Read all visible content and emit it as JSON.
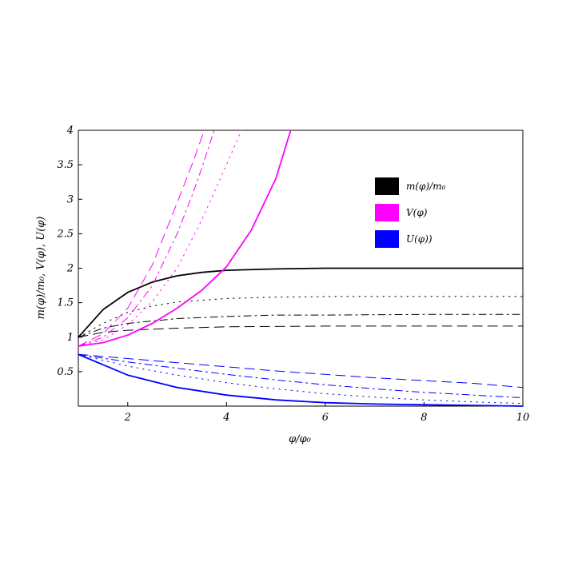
{
  "chart_data": {
    "type": "line",
    "xlabel": "φ/φ₀",
    "ylabel": "m(φ)/m₀, V(φ), U(φ)",
    "xlim": [
      1,
      10
    ],
    "ylim": [
      0,
      4
    ],
    "xticks": [
      2,
      4,
      6,
      8,
      10
    ],
    "xtick_labels": [
      "2",
      "4",
      "6",
      "8",
      "10"
    ],
    "yticks": [
      0.5,
      1,
      1.5,
      2,
      2.5,
      3,
      3.5,
      4
    ],
    "ytick_labels": [
      "0.5",
      "1",
      "1.5",
      "2",
      "2.5",
      "3",
      "3.5",
      "4"
    ],
    "grid": false,
    "legend_placement": "top-right",
    "colors": {
      "black": "#000000",
      "magenta": "#ff00ff",
      "blue": "#0000ff"
    },
    "legend": [
      {
        "label": "m(φ)/m₀",
        "color": "#000000"
      },
      {
        "label": "V(φ)",
        "color": "#ff00ff"
      },
      {
        "label": "U(φ))",
        "color": "#0000ff"
      }
    ],
    "series": [
      {
        "group": "m",
        "color": "#000000",
        "style": "solid",
        "x": [
          1,
          1.5,
          2,
          2.5,
          3,
          3.5,
          4,
          5,
          6,
          8,
          10
        ],
        "y": [
          1.0,
          1.4,
          1.65,
          1.8,
          1.89,
          1.94,
          1.97,
          1.99,
          2.0,
          2.0,
          2.0
        ]
      },
      {
        "group": "m",
        "color": "#000000",
        "style": "dotted",
        "x": [
          1,
          1.5,
          2,
          2.5,
          3,
          4,
          5,
          6,
          8,
          10
        ],
        "y": [
          1.0,
          1.2,
          1.36,
          1.45,
          1.51,
          1.56,
          1.58,
          1.59,
          1.59,
          1.59
        ]
      },
      {
        "group": "m",
        "color": "#000000",
        "style": "dashdot",
        "x": [
          1,
          1.5,
          2,
          3,
          4,
          5,
          6,
          8,
          10
        ],
        "y": [
          1.0,
          1.13,
          1.2,
          1.27,
          1.3,
          1.32,
          1.32,
          1.33,
          1.33
        ]
      },
      {
        "group": "m",
        "color": "#000000",
        "style": "dashed",
        "x": [
          1,
          1.5,
          2,
          3,
          4,
          6,
          8,
          10
        ],
        "y": [
          1.0,
          1.07,
          1.1,
          1.13,
          1.15,
          1.16,
          1.16,
          1.16
        ]
      },
      {
        "group": "V",
        "color": "#ff00ff",
        "style": "solid",
        "x": [
          1,
          1.5,
          2,
          2.5,
          3,
          3.5,
          4,
          4.5,
          5,
          5.3
        ],
        "y": [
          0.87,
          0.92,
          1.03,
          1.2,
          1.42,
          1.68,
          2.02,
          2.55,
          3.3,
          4.0
        ]
      },
      {
        "group": "V",
        "color": "#ff00ff",
        "style": "dotted",
        "x": [
          1,
          1.5,
          2,
          2.5,
          3,
          3.5,
          4,
          4.3
        ],
        "y": [
          0.87,
          0.96,
          1.18,
          1.52,
          2.0,
          2.7,
          3.5,
          4.0
        ]
      },
      {
        "group": "V",
        "color": "#ff00ff",
        "style": "dashdot",
        "x": [
          1,
          1.5,
          2,
          2.5,
          3,
          3.3,
          3.5,
          3.75
        ],
        "y": [
          0.87,
          1.0,
          1.28,
          1.75,
          2.5,
          3.05,
          3.45,
          4.0
        ]
      },
      {
        "group": "V",
        "color": "#ff00ff",
        "style": "dashed",
        "x": [
          1,
          1.5,
          2,
          2.5,
          3,
          3.3,
          3.55
        ],
        "y": [
          0.87,
          1.05,
          1.42,
          2.05,
          2.95,
          3.5,
          4.0
        ]
      },
      {
        "group": "U",
        "color": "#0000ff",
        "style": "solid",
        "x": [
          1,
          2,
          3,
          4,
          5,
          6,
          7,
          8,
          9,
          10
        ],
        "y": [
          0.75,
          0.45,
          0.27,
          0.16,
          0.09,
          0.05,
          0.03,
          0.02,
          0.01,
          0.0
        ]
      },
      {
        "group": "U",
        "color": "#0000ff",
        "style": "dotted",
        "x": [
          1,
          2,
          3,
          4,
          5,
          6,
          7,
          8,
          9,
          10
        ],
        "y": [
          0.75,
          0.58,
          0.45,
          0.34,
          0.25,
          0.18,
          0.13,
          0.09,
          0.06,
          0.04
        ]
      },
      {
        "group": "U",
        "color": "#0000ff",
        "style": "dashdot",
        "x": [
          1,
          2,
          3,
          4,
          5,
          6,
          7,
          8,
          9,
          10
        ],
        "y": [
          0.75,
          0.64,
          0.55,
          0.46,
          0.38,
          0.31,
          0.25,
          0.2,
          0.16,
          0.12
        ]
      },
      {
        "group": "U",
        "color": "#0000ff",
        "style": "dashed",
        "x": [
          1,
          2,
          3,
          4,
          5,
          6,
          7,
          8,
          9,
          10
        ],
        "y": [
          0.75,
          0.69,
          0.63,
          0.57,
          0.51,
          0.46,
          0.41,
          0.37,
          0.33,
          0.27
        ]
      }
    ]
  }
}
